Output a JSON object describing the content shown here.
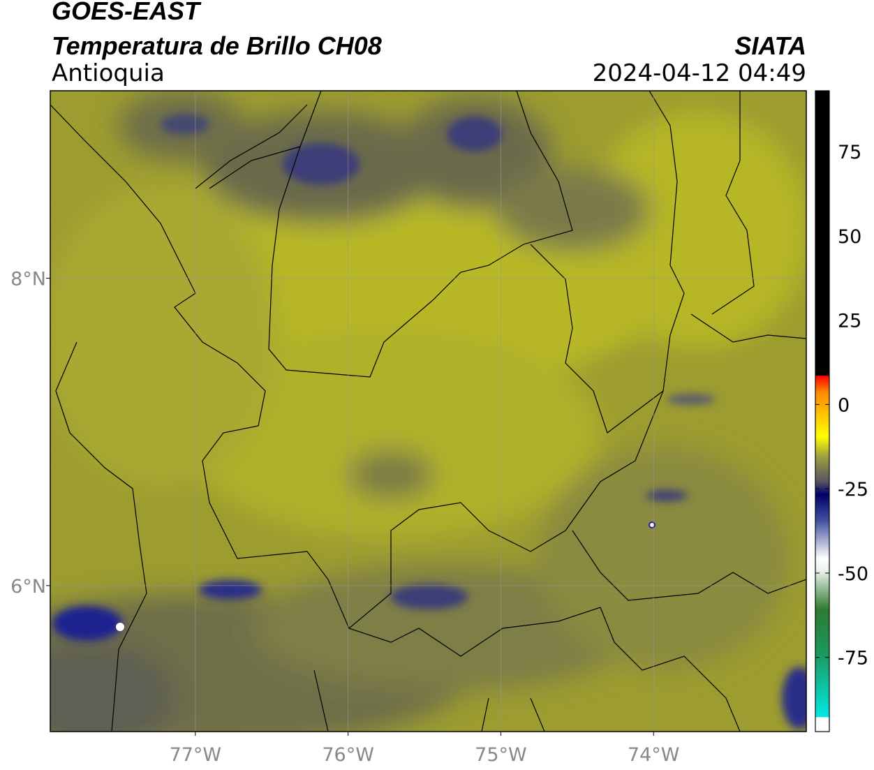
{
  "header": {
    "satellite": "GOES-EAST",
    "product": "Temperatura de Brillo CH08",
    "region": "Antioquia",
    "source": "SIATA",
    "datetime": "2024-04-12 04:49"
  },
  "map": {
    "xlim": [
      -77.95,
      -73.0
    ],
    "ylim": [
      5.05,
      9.22
    ],
    "xticks": [
      {
        "value": -77,
        "label": "77°W"
      },
      {
        "value": -76,
        "label": "76°W"
      },
      {
        "value": -75,
        "label": "75°W"
      },
      {
        "value": -74,
        "label": "74°W"
      }
    ],
    "yticks": [
      {
        "value": 6,
        "label": "6°N"
      },
      {
        "value": 8,
        "label": "8°N"
      }
    ]
  },
  "colorbar": {
    "lim": [
      -97,
      93
    ],
    "ticks": [
      -75,
      -50,
      -25,
      0,
      25,
      50,
      75
    ]
  }
}
